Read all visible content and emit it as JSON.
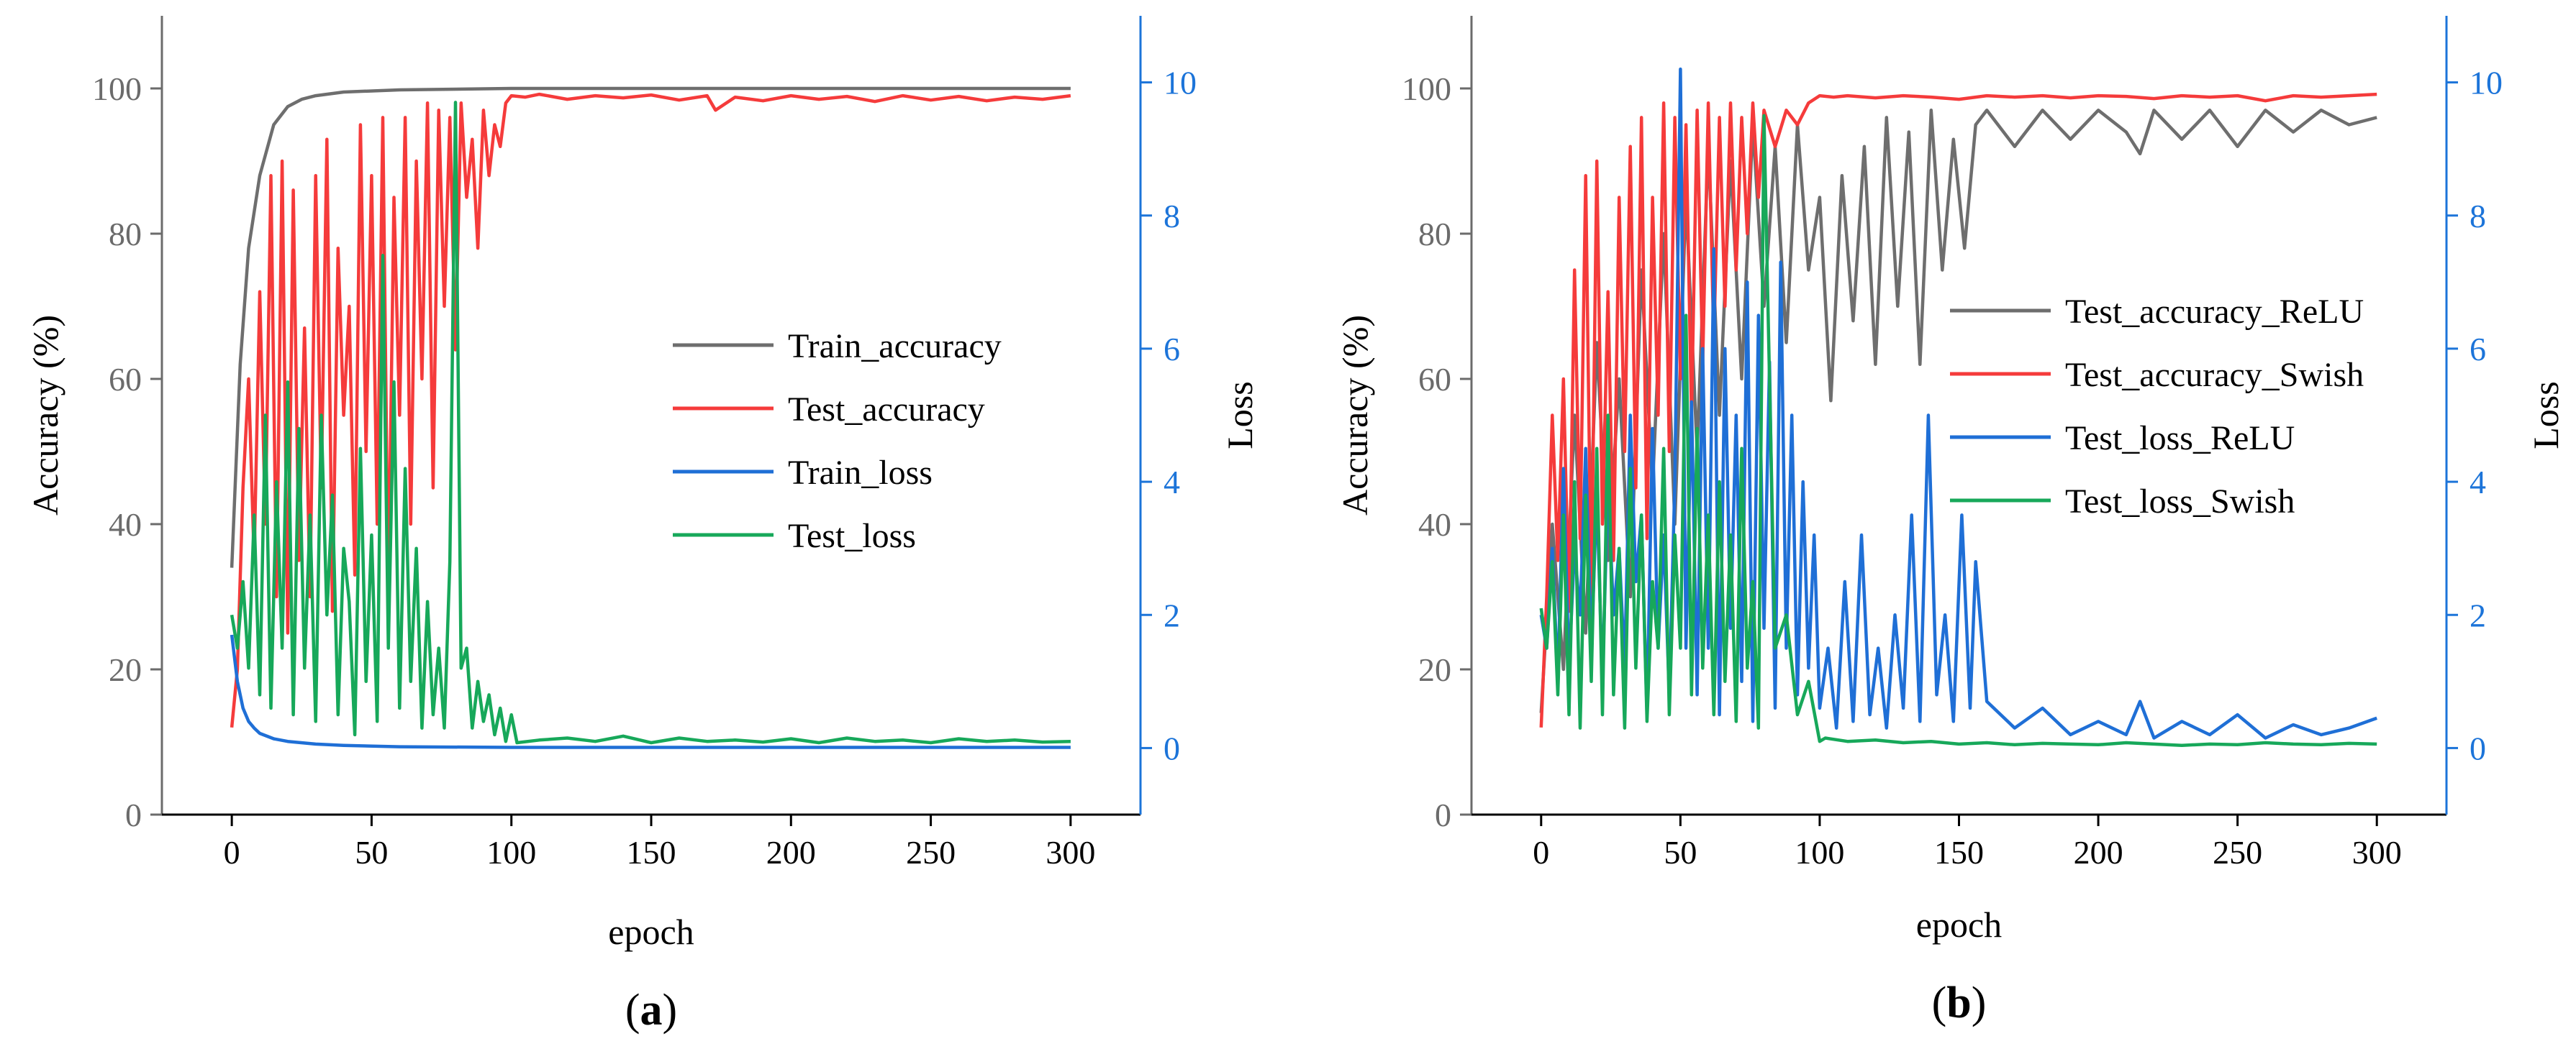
{
  "colors": {
    "train_accuracy": "#6e6e6e",
    "test_accuracy": "#f53b3b",
    "train_loss": "#1f6fd6",
    "test_loss": "#17a85a",
    "relu_accuracy": "#6e6e6e",
    "swish_accuracy": "#f53b3b",
    "relu_loss": "#1f6fd6",
    "swish_loss": "#17a85a",
    "left_axis": "#6b6b6b",
    "right_axis": "#1c74d9"
  },
  "chart_data": [
    {
      "panel_label": "(a)",
      "panel_letter": "a",
      "type": "line",
      "xlabel": "epoch",
      "ylabel": "Accuracy (%)",
      "y2label": "Loss",
      "xlim": [
        -25,
        325
      ],
      "ylim": [
        0,
        110
      ],
      "y2lim": [
        -1,
        11
      ],
      "xticks": [
        0,
        50,
        100,
        150,
        200,
        250,
        300
      ],
      "yticks": [
        0,
        20,
        40,
        60,
        80,
        100
      ],
      "y2ticks": [
        0,
        2,
        4,
        6,
        8,
        10
      ],
      "legend_position": "center-right",
      "series": [
        {
          "name": "Train_accuracy",
          "axis": "left",
          "color_key": "train_accuracy",
          "x": [
            0,
            3,
            6,
            10,
            15,
            20,
            25,
            30,
            40,
            60,
            100,
            300
          ],
          "y": [
            34,
            62,
            78,
            88,
            95,
            97.5,
            98.5,
            99,
            99.5,
            99.8,
            100,
            100
          ]
        },
        {
          "name": "Test_accuracy",
          "axis": "left",
          "color_key": "test_accuracy",
          "x": [
            0,
            2,
            4,
            6,
            8,
            10,
            12,
            14,
            16,
            18,
            20,
            22,
            24,
            26,
            28,
            30,
            32,
            34,
            36,
            38,
            40,
            42,
            44,
            46,
            48,
            50,
            52,
            54,
            56,
            58,
            60,
            62,
            64,
            66,
            68,
            70,
            72,
            74,
            76,
            78,
            80,
            82,
            84,
            86,
            88,
            90,
            92,
            94,
            96,
            98,
            100,
            105,
            110,
            120,
            130,
            140,
            150,
            160,
            170,
            173,
            180,
            190,
            200,
            210,
            220,
            230,
            240,
            250,
            260,
            270,
            280,
            290,
            300
          ],
          "y": [
            12,
            20,
            45,
            60,
            35,
            72,
            40,
            88,
            30,
            90,
            25,
            86,
            35,
            67,
            30,
            88,
            45,
            93,
            28,
            78,
            55,
            70,
            33,
            95,
            50,
            88,
            40,
            96,
            30,
            85,
            55,
            96,
            40,
            90,
            60,
            98,
            45,
            97,
            70,
            96,
            64,
            98,
            85,
            93,
            78,
            97,
            88,
            95,
            92,
            98,
            99,
            98.8,
            99.2,
            98.5,
            99,
            98.7,
            99.1,
            98.4,
            99,
            97,
            98.8,
            98.3,
            99,
            98.5,
            98.9,
            98.2,
            99,
            98.4,
            98.9,
            98.3,
            98.8,
            98.5,
            99
          ]
        },
        {
          "name": "Train_loss",
          "axis": "right",
          "color_key": "train_loss",
          "x": [
            0,
            2,
            4,
            6,
            8,
            10,
            15,
            20,
            30,
            40,
            60,
            100,
            300
          ],
          "y": [
            1.7,
            1.0,
            0.6,
            0.4,
            0.3,
            0.22,
            0.14,
            0.1,
            0.06,
            0.04,
            0.02,
            0.01,
            0.01
          ]
        },
        {
          "name": "Test_loss",
          "axis": "right",
          "color_key": "test_loss",
          "x": [
            0,
            2,
            4,
            6,
            8,
            10,
            12,
            14,
            16,
            18,
            20,
            22,
            24,
            26,
            28,
            30,
            32,
            34,
            36,
            38,
            40,
            42,
            44,
            46,
            48,
            50,
            52,
            54,
            56,
            58,
            60,
            62,
            64,
            66,
            68,
            70,
            72,
            74,
            76,
            78,
            80,
            82,
            84,
            86,
            88,
            90,
            92,
            94,
            96,
            98,
            100,
            102,
            110,
            120,
            130,
            140,
            150,
            160,
            170,
            180,
            190,
            200,
            210,
            220,
            230,
            240,
            250,
            260,
            270,
            280,
            290,
            300
          ],
          "y": [
            2,
            1.5,
            2.5,
            1.2,
            3.5,
            0.8,
            5,
            0.6,
            4,
            1.5,
            5.5,
            0.5,
            4.8,
            1.2,
            3.5,
            0.4,
            5,
            2,
            3.8,
            0.5,
            3,
            2.2,
            0.2,
            4.5,
            1,
            3.2,
            0.4,
            7.4,
            1.5,
            5.5,
            0.6,
            4.2,
            1,
            3,
            0.3,
            2.2,
            0.5,
            1.5,
            0.3,
            2.8,
            9.7,
            1.2,
            1.5,
            0.3,
            1,
            0.4,
            0.8,
            0.2,
            0.6,
            0.1,
            0.5,
            0.08,
            0.12,
            0.15,
            0.1,
            0.18,
            0.08,
            0.15,
            0.1,
            0.12,
            0.09,
            0.14,
            0.08,
            0.15,
            0.1,
            0.12,
            0.08,
            0.14,
            0.1,
            0.12,
            0.09,
            0.1
          ]
        }
      ]
    },
    {
      "panel_label": "(b)",
      "panel_letter": "b",
      "type": "line",
      "xlabel": "epoch",
      "ylabel": "Accuracy (%)",
      "y2label": "Loss",
      "xlim": [
        -25,
        325
      ],
      "ylim": [
        0,
        110
      ],
      "y2lim": [
        -1,
        11
      ],
      "xticks": [
        0,
        50,
        100,
        150,
        200,
        250,
        300
      ],
      "yticks": [
        0,
        20,
        40,
        60,
        80,
        100
      ],
      "y2ticks": [
        0,
        2,
        4,
        6,
        8,
        10
      ],
      "legend_position": "center-right",
      "series": [
        {
          "name": "Test_accuracy_ReLU",
          "axis": "left",
          "color_key": "relu_accuracy",
          "x": [
            0,
            4,
            8,
            12,
            16,
            20,
            24,
            28,
            32,
            36,
            40,
            44,
            48,
            52,
            56,
            60,
            64,
            68,
            72,
            76,
            80,
            84,
            88,
            92,
            96,
            100,
            104,
            108,
            112,
            116,
            120,
            124,
            128,
            132,
            136,
            140,
            144,
            148,
            152,
            156,
            160,
            170,
            180,
            190,
            200,
            210,
            215,
            220,
            230,
            240,
            250,
            260,
            270,
            280,
            290,
            300
          ],
          "y": [
            14,
            40,
            20,
            55,
            25,
            65,
            35,
            60,
            30,
            75,
            45,
            80,
            40,
            85,
            50,
            92,
            55,
            90,
            60,
            95,
            70,
            92,
            65,
            95,
            75,
            85,
            57,
            88,
            68,
            92,
            62,
            96,
            70,
            94,
            62,
            97,
            75,
            93,
            78,
            95,
            97,
            92,
            97,
            93,
            97,
            94,
            91,
            97,
            93,
            97,
            92,
            97,
            94,
            97,
            95,
            96
          ]
        },
        {
          "name": "Test_accuracy_Swish",
          "axis": "left",
          "color_key": "swish_accuracy",
          "x": [
            0,
            2,
            4,
            6,
            8,
            10,
            12,
            14,
            16,
            18,
            20,
            22,
            24,
            26,
            28,
            30,
            32,
            34,
            36,
            38,
            40,
            42,
            44,
            46,
            48,
            50,
            52,
            54,
            56,
            58,
            60,
            62,
            64,
            66,
            68,
            70,
            72,
            74,
            76,
            78,
            80,
            84,
            88,
            92,
            96,
            100,
            105,
            110,
            120,
            130,
            140,
            150,
            160,
            170,
            180,
            190,
            200,
            210,
            220,
            230,
            240,
            250,
            260,
            270,
            280,
            290,
            300
          ],
          "y": [
            12,
            30,
            55,
            35,
            60,
            28,
            75,
            38,
            88,
            30,
            90,
            40,
            72,
            35,
            85,
            50,
            92,
            45,
            96,
            38,
            85,
            55,
            98,
            50,
            96,
            60,
            95,
            55,
            97,
            62,
            98,
            65,
            96,
            70,
            98,
            75,
            96,
            80,
            98,
            85,
            97,
            92,
            97,
            95,
            98,
            99,
            98.8,
            99,
            98.7,
            99,
            98.8,
            98.5,
            99,
            98.8,
            99,
            98.7,
            99,
            98.9,
            98.6,
            99,
            98.8,
            99,
            98.3,
            99,
            98.8,
            99,
            99.2
          ]
        },
        {
          "name": "Test_loss_ReLU",
          "axis": "right",
          "color_key": "relu_loss",
          "x": [
            0,
            2,
            4,
            6,
            8,
            10,
            12,
            14,
            16,
            18,
            20,
            22,
            24,
            26,
            28,
            30,
            32,
            34,
            36,
            38,
            40,
            42,
            44,
            46,
            48,
            50,
            52,
            54,
            56,
            58,
            60,
            62,
            64,
            66,
            68,
            70,
            72,
            74,
            76,
            78,
            80,
            82,
            84,
            86,
            88,
            90,
            92,
            94,
            96,
            98,
            100,
            103,
            106,
            109,
            112,
            115,
            118,
            121,
            124,
            127,
            130,
            133,
            136,
            139,
            142,
            145,
            148,
            151,
            154,
            156,
            160,
            170,
            180,
            190,
            200,
            210,
            215,
            220,
            230,
            240,
            250,
            260,
            270,
            280,
            290,
            300
          ],
          "y": [
            2,
            1.5,
            3,
            1,
            4.2,
            1.2,
            3,
            2,
            4.5,
            1.5,
            3.8,
            1,
            4,
            2,
            3,
            1.2,
            5,
            2.5,
            3.5,
            0.5,
            4.8,
            1.5,
            3.2,
            0.8,
            4,
            10.2,
            1.5,
            5.2,
            0.8,
            6,
            1.5,
            7.5,
            0.5,
            6,
            1.8,
            5,
            1,
            7,
            0.4,
            6.5,
            1.8,
            5.8,
            0.6,
            7.3,
            1.5,
            5,
            0.8,
            4,
            1.2,
            3.2,
            0.6,
            1.5,
            0.3,
            2.5,
            0.4,
            3.2,
            0.5,
            1.5,
            0.3,
            2,
            0.6,
            3.5,
            0.4,
            5,
            0.8,
            2,
            0.4,
            3.5,
            0.6,
            2.8,
            0.7,
            0.3,
            0.6,
            0.2,
            0.4,
            0.2,
            0.7,
            0.15,
            0.4,
            0.2,
            0.5,
            0.15,
            0.35,
            0.2,
            0.3,
            0.45
          ]
        },
        {
          "name": "Test_loss_Swish",
          "axis": "right",
          "color_key": "swish_loss",
          "x": [
            0,
            2,
            4,
            6,
            8,
            10,
            12,
            14,
            16,
            18,
            20,
            22,
            24,
            26,
            28,
            30,
            32,
            34,
            36,
            38,
            40,
            42,
            44,
            46,
            48,
            50,
            52,
            54,
            56,
            58,
            60,
            62,
            64,
            66,
            68,
            70,
            72,
            74,
            76,
            78,
            80,
            84,
            88,
            92,
            96,
            100,
            102,
            110,
            120,
            130,
            140,
            150,
            160,
            170,
            180,
            190,
            200,
            210,
            220,
            230,
            240,
            250,
            260,
            270,
            280,
            290,
            300
          ],
          "y": [
            2.1,
            1.5,
            2.8,
            0.8,
            3.5,
            0.5,
            4,
            0.3,
            3.8,
            1,
            4.5,
            0.5,
            5,
            0.8,
            3,
            0.3,
            4.2,
            1.2,
            3.5,
            0.4,
            2.5,
            1.5,
            4.5,
            0.5,
            3.2,
            1.5,
            6.5,
            0.8,
            4.8,
            1.2,
            3.5,
            0.5,
            4,
            1,
            3.2,
            0.4,
            4.5,
            1.2,
            2.5,
            0.3,
            9.5,
            1.5,
            2,
            0.5,
            1,
            0.1,
            0.15,
            0.1,
            0.12,
            0.08,
            0.1,
            0.06,
            0.08,
            0.05,
            0.07,
            0.06,
            0.05,
            0.08,
            0.06,
            0.04,
            0.06,
            0.05,
            0.08,
            0.06,
            0.05,
            0.07,
            0.06
          ]
        }
      ]
    }
  ]
}
